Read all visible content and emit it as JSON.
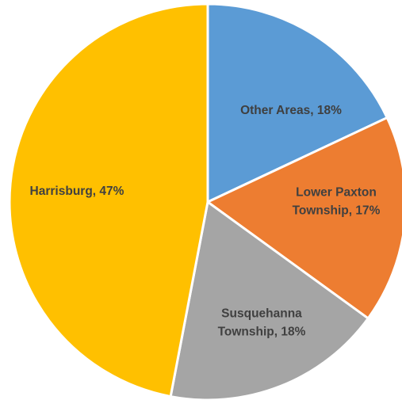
{
  "chart_data": {
    "type": "pie",
    "title": "",
    "start_angle_deg": 0,
    "direction": "clockwise",
    "slices": [
      {
        "label": "Other Areas",
        "value": 18,
        "color": "#5B9BD5",
        "label_color": "#3F3F3F",
        "label_lines": [
          "Other Areas, 18%"
        ]
      },
      {
        "label": "Lower Paxton Township",
        "value": 17,
        "color": "#ED7D31",
        "label_color": "#404040",
        "label_lines": [
          "Lower Paxton",
          "Township, 17%"
        ]
      },
      {
        "label": "Susquehanna Township",
        "value": 18,
        "color": "#A5A5A5",
        "label_color": "#404040",
        "label_lines": [
          "Susquehanna",
          "Township, 18%"
        ]
      },
      {
        "label": "Harrisburg",
        "value": 47,
        "color": "#FFC000",
        "label_color": "#404040",
        "label_lines": [
          "Harrisburg, 47%"
        ]
      }
    ]
  }
}
